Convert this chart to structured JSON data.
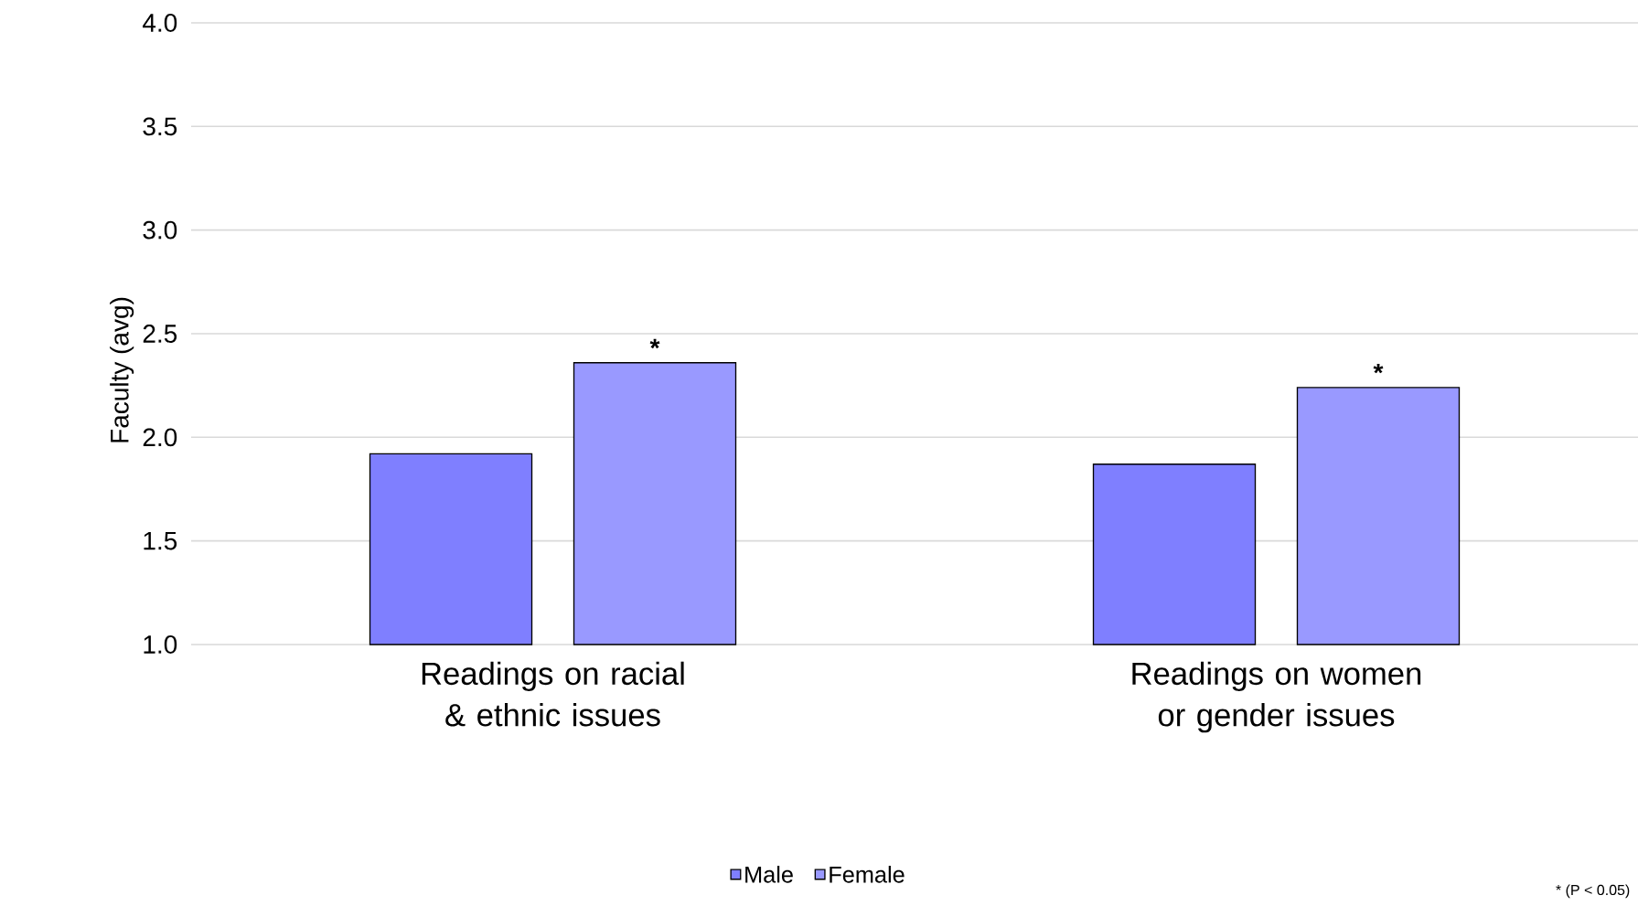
{
  "chart_data": {
    "type": "bar",
    "ylabel": "Faculty (avg)",
    "categories": [
      "Readings on racial & ethnic issues",
      "Readings on women or gender issues"
    ],
    "series": [
      {
        "name": "Male",
        "color": "#7f7fff",
        "values": [
          1.92,
          1.87
        ]
      },
      {
        "name": "Female",
        "color": "#9999ff",
        "values": [
          2.36,
          2.24
        ]
      }
    ],
    "ylim": [
      1,
      4
    ],
    "yticks": [
      {
        "value": 1,
        "label": "1.0"
      },
      {
        "value": 1.5,
        "label": "1.5"
      },
      {
        "value": 2,
        "label": "2.0"
      },
      {
        "value": 2.5,
        "label": "2.5"
      },
      {
        "value": 3,
        "label": "3.0"
      },
      {
        "value": 3.5,
        "label": "3.5"
      },
      {
        "value": 4,
        "label": "4.0"
      }
    ],
    "grid": "y",
    "legend": "bottom",
    "annotations": [
      "*",
      "*",
      "* (P < 0.05)"
    ]
  }
}
